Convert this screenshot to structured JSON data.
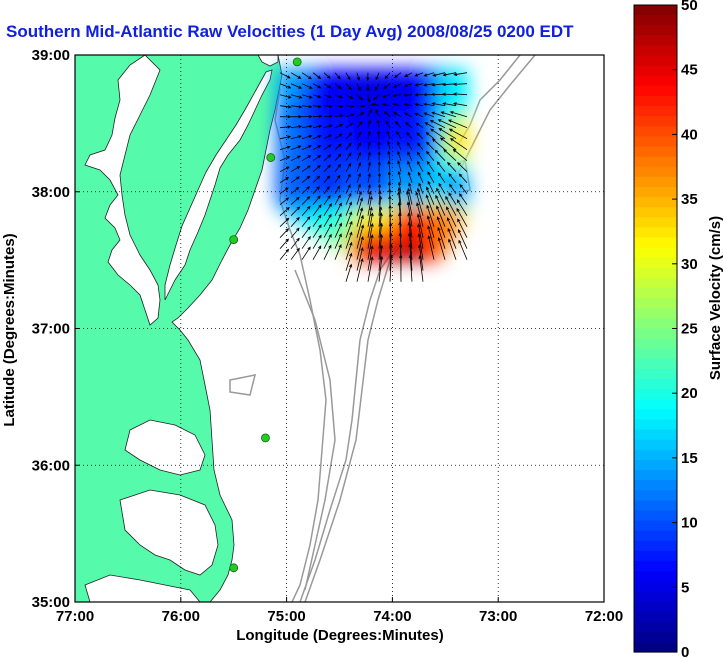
{
  "title": "Southern Mid-Atlantic Raw Velocities (1 Day Avg) 2008/08/25 0200 EDT",
  "colors": {
    "land": "#55fbaa",
    "ocean": "#ffffff",
    "bathymetry": "#999999",
    "stations": "#22cc22",
    "title": "#1020e0"
  },
  "chart_data": {
    "type": "heatmap",
    "title": "Southern Mid-Atlantic Raw Velocities (1 Day Avg) 2008/08/25 0200 EDT",
    "xlabel": "Longitude (Degrees:Minutes)",
    "ylabel": "Latitude (Degrees:Minutes)",
    "x_ticks": [
      "77:00",
      "76:00",
      "75:00",
      "74:00",
      "73:00",
      "72:00"
    ],
    "y_ticks": [
      "39:00",
      "38:00",
      "37:00",
      "36:00",
      "35:00"
    ],
    "xlim": [
      -77,
      -72
    ],
    "ylim": [
      35,
      39
    ],
    "grid": true,
    "colorbar": {
      "label": "Surface Velocity (cm/s)",
      "ticks": [
        "50",
        "45",
        "40",
        "35",
        "30",
        "25",
        "20",
        "15",
        "10",
        "5",
        "0"
      ],
      "range": [
        0,
        50
      ]
    },
    "field_extent": {
      "lon": [
        -75.1,
        -73.3
      ],
      "lat": [
        37.5,
        38.9
      ]
    },
    "field_samples": [
      {
        "lon": -75.0,
        "lat": 38.8,
        "speed": 14
      },
      {
        "lon": -74.6,
        "lat": 38.7,
        "speed": 6
      },
      {
        "lon": -74.2,
        "lat": 38.7,
        "speed": 5
      },
      {
        "lon": -73.8,
        "lat": 38.7,
        "speed": 6
      },
      {
        "lon": -73.4,
        "lat": 38.7,
        "speed": 18
      },
      {
        "lon": -75.0,
        "lat": 38.4,
        "speed": 12
      },
      {
        "lon": -74.6,
        "lat": 38.4,
        "speed": 7
      },
      {
        "lon": -74.2,
        "lat": 38.4,
        "speed": 6
      },
      {
        "lon": -73.8,
        "lat": 38.4,
        "speed": 7
      },
      {
        "lon": -73.3,
        "lat": 38.4,
        "speed": 33
      },
      {
        "lon": -75.0,
        "lat": 38.0,
        "speed": 11
      },
      {
        "lon": -74.6,
        "lat": 38.0,
        "speed": 8
      },
      {
        "lon": -74.2,
        "lat": 38.0,
        "speed": 9
      },
      {
        "lon": -73.8,
        "lat": 38.0,
        "speed": 13
      },
      {
        "lon": -73.4,
        "lat": 38.0,
        "speed": 14
      },
      {
        "lon": -75.0,
        "lat": 37.8,
        "speed": 16
      },
      {
        "lon": -74.6,
        "lat": 37.8,
        "speed": 20
      },
      {
        "lon": -74.2,
        "lat": 37.8,
        "speed": 32
      },
      {
        "lon": -73.8,
        "lat": 37.8,
        "speed": 44
      },
      {
        "lon": -73.5,
        "lat": 37.8,
        "speed": 38
      },
      {
        "lon": -74.6,
        "lat": 37.6,
        "speed": 24
      },
      {
        "lon": -74.2,
        "lat": 37.6,
        "speed": 45
      },
      {
        "lon": -73.9,
        "lat": 37.5,
        "speed": 48
      }
    ],
    "stations": [
      {
        "lon": -74.9,
        "lat": 38.95
      },
      {
        "lon": -75.15,
        "lat": 38.25
      },
      {
        "lon": -75.5,
        "lat": 37.65
      },
      {
        "lon": -75.2,
        "lat": 36.2
      },
      {
        "lon": -75.5,
        "lat": 35.25
      }
    ]
  }
}
